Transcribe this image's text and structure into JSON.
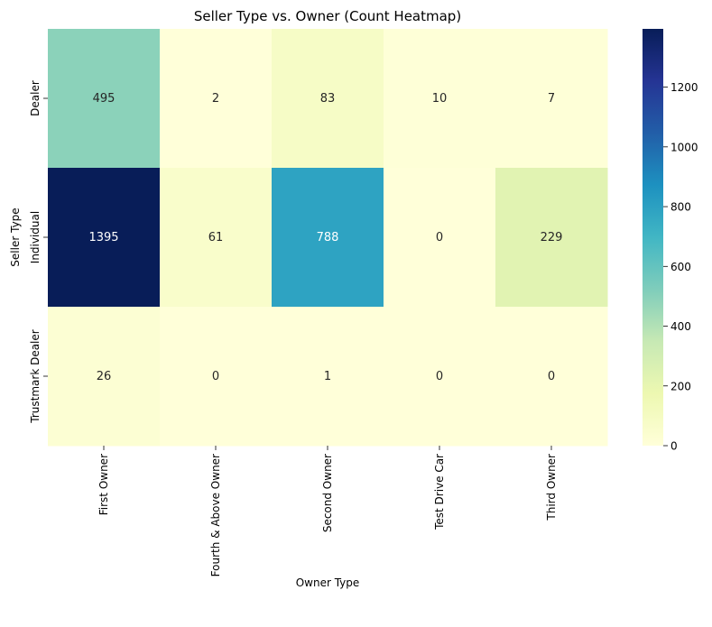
{
  "chart_data": {
    "type": "heatmap",
    "title": "Seller Type vs. Owner (Count Heatmap)",
    "xlabel": "Owner Type",
    "ylabel": "Seller Type",
    "x_categories": [
      "First Owner",
      "Fourth & Above Owner",
      "Second Owner",
      "Test Drive Car",
      "Third Owner"
    ],
    "y_categories": [
      "Dealer",
      "Individual",
      "Trustmark Dealer"
    ],
    "values": [
      [
        495,
        2,
        83,
        10,
        7
      ],
      [
        1395,
        61,
        788,
        0,
        229
      ],
      [
        26,
        0,
        1,
        0,
        0
      ]
    ],
    "colormap": "YlGnBu",
    "colorbar": {
      "range": [
        0,
        1395
      ],
      "ticks": [
        0,
        200,
        400,
        600,
        800,
        1000,
        1200
      ]
    }
  }
}
